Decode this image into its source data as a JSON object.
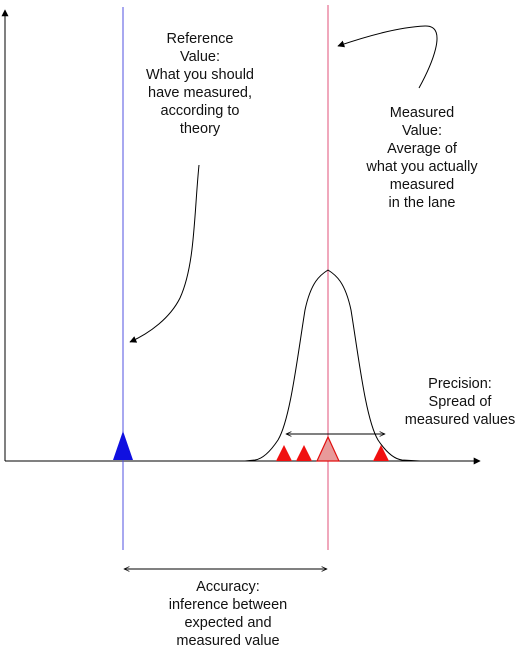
{
  "labels": {
    "reference": [
      "Reference",
      "Value:",
      "What you should",
      "have measured,",
      "according to",
      "theory"
    ],
    "measured": [
      "Measured",
      "Value:",
      "Average of",
      "what you actually",
      "measured",
      "in the lane"
    ],
    "precision": [
      "Precision:",
      "Spread of",
      "measured values"
    ],
    "accuracy": [
      "Accuracy:",
      "inference between",
      "expected and",
      "measured value"
    ]
  },
  "colors": {
    "reference_line": "#5050e0",
    "measured_line": "#e0507a",
    "reference_marker": "#1010e0",
    "measurement_marker": "#f01010",
    "mean_marker": "#e89a9a",
    "mean_marker_stroke": "#e01010",
    "axis": "#000000",
    "curve": "#000000"
  }
}
